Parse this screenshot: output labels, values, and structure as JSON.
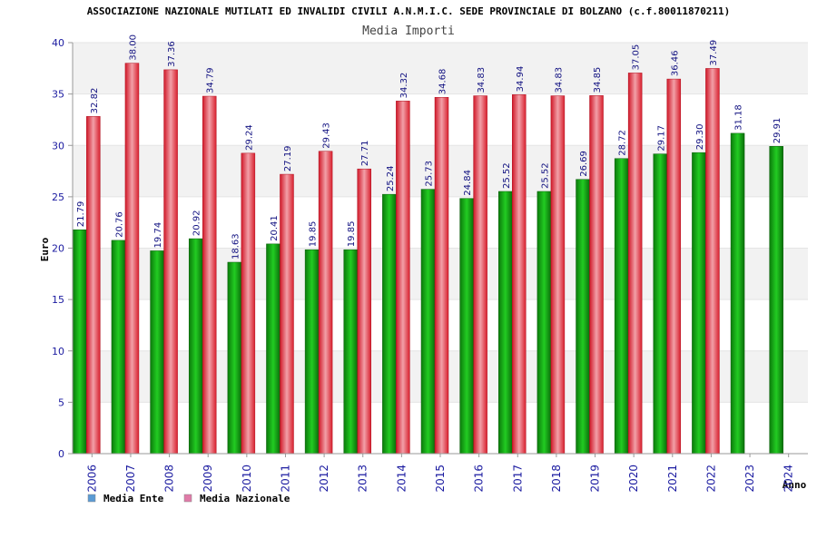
{
  "chart_data": {
    "type": "bar",
    "title": "ASSOCIAZIONE NAZIONALE MUTILATI ED INVALIDI CIVILI A.N.M.I.C. SEDE PROVINCIALE DI BOLZANO (c.f.80011870211)",
    "subtitle": "Media Importi",
    "xlabel": "Anno",
    "ylabel": "Euro",
    "ylim": [
      0,
      40
    ],
    "yticks": [
      "0",
      "5",
      "10",
      "15",
      "20",
      "25",
      "30",
      "35",
      "40"
    ],
    "categories": [
      "2006",
      "2007",
      "2008",
      "2009",
      "2010",
      "2011",
      "2012",
      "2013",
      "2014",
      "2015",
      "2016",
      "2017",
      "2018",
      "2019",
      "2020",
      "2021",
      "2022",
      "2023",
      "2024"
    ],
    "series": [
      {
        "name": "Media Ente",
        "color": "#1fae1f",
        "values": [
          21.79,
          20.76,
          19.74,
          20.92,
          18.63,
          20.41,
          19.85,
          19.85,
          25.24,
          25.73,
          24.84,
          25.52,
          25.52,
          26.69,
          28.72,
          29.17,
          29.3,
          31.18,
          29.91
        ],
        "labels": [
          "21.79",
          "20.76",
          "19.74",
          "20.92",
          "18.63",
          "20.41",
          "19.85",
          "19.85",
          "25.24",
          "25.73",
          "24.84",
          "25.52",
          "25.52",
          "26.69",
          "28.72",
          "29.17",
          "29.30",
          "31.18",
          "29.91"
        ]
      },
      {
        "name": "Media Nazionale",
        "color": "#e8283a",
        "values": [
          32.82,
          38.0,
          37.36,
          34.79,
          29.24,
          27.19,
          29.43,
          27.71,
          34.32,
          34.68,
          34.83,
          34.94,
          34.83,
          34.85,
          37.05,
          36.46,
          37.49,
          null,
          null
        ],
        "labels": [
          "32.82",
          "38.00",
          "37.36",
          "34.79",
          "29.24",
          "27.19",
          "29.43",
          "27.71",
          "34.32",
          "34.68",
          "34.83",
          "34.94",
          "34.83",
          "34.85",
          "37.05",
          "36.46",
          "37.49",
          "",
          ""
        ]
      }
    ],
    "legend": {
      "placement": "bottom-left",
      "items": [
        {
          "label": "Media Ente",
          "swatch": "#5b9bd5"
        },
        {
          "label": "Media Nazionale",
          "swatch": "#e07ba8"
        }
      ]
    },
    "grid": true,
    "band_colors": [
      "#ffffff",
      "#f2f2f2"
    ]
  }
}
